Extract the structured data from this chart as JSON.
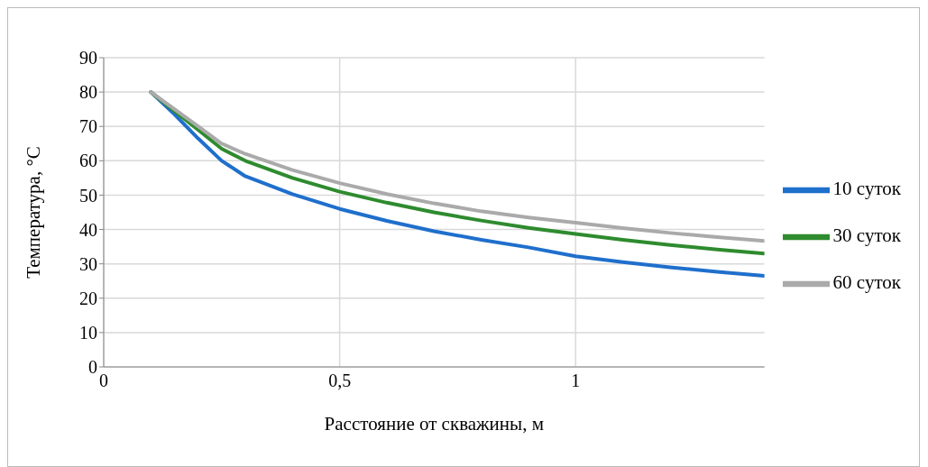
{
  "chart_data": {
    "type": "line",
    "xlabel": "Расстояние от скважины, м",
    "ylabel": "Температура, °С",
    "x": [
      0.1,
      0.15,
      0.2,
      0.25,
      0.3,
      0.4,
      0.5,
      0.6,
      0.7,
      0.8,
      0.9,
      1.0,
      1.1,
      1.2,
      1.3,
      1.4
    ],
    "series": [
      {
        "name": "10 суток",
        "color": "#1f6fcc",
        "values": [
          80,
          73.5,
          66.5,
          60,
          55.5,
          50.3,
          46,
          42.5,
          39.5,
          37,
          34.8,
          32.2,
          30.5,
          29,
          27.7,
          26.5
        ]
      },
      {
        "name": "30 суток",
        "color": "#2e8b2e",
        "values": [
          80,
          74.5,
          69,
          63.5,
          60,
          55,
          51,
          47.8,
          45,
          42.6,
          40.5,
          38.7,
          37,
          35.5,
          34.2,
          33
        ]
      },
      {
        "name": "60 суток",
        "color": "#aaaaaa",
        "values": [
          80,
          75,
          70,
          65,
          62,
          57.3,
          53.5,
          50.3,
          47.6,
          45.3,
          43.5,
          42,
          40.4,
          39,
          37.8,
          36.7
        ]
      }
    ],
    "xlim": [
      0,
      1.4
    ],
    "xticks": [
      0,
      {
        "value": 0.5,
        "label": "0,5"
      },
      1
    ],
    "ylim": [
      0,
      90
    ],
    "yticks": [
      0,
      10,
      20,
      30,
      40,
      50,
      60,
      70,
      80,
      90
    ],
    "grid": true,
    "legend": "right",
    "marker": "none",
    "line_style": "solid"
  }
}
